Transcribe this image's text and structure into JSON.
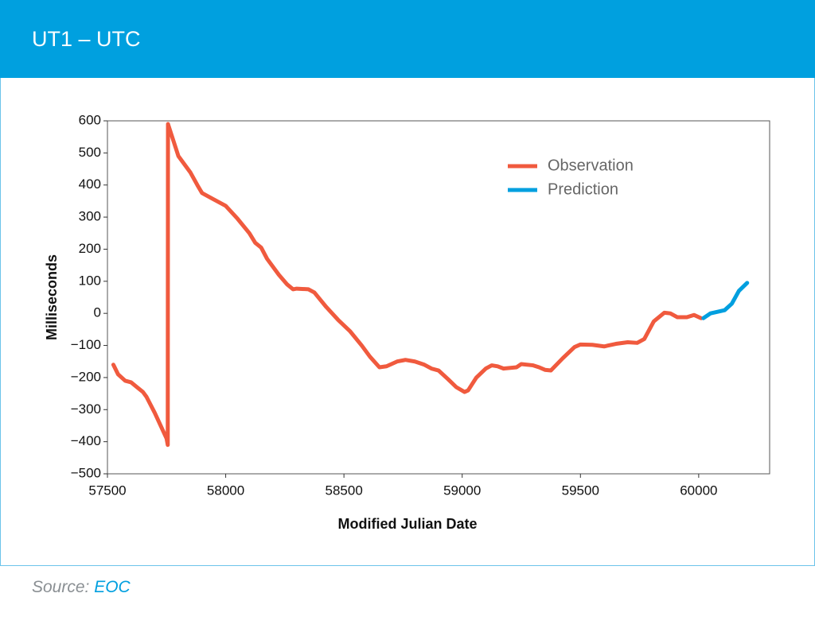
{
  "header": {
    "title": "UT1 – UTC"
  },
  "chart_data": {
    "type": "line",
    "xlabel": "Modified Julian Date",
    "ylabel": "Milliseconds",
    "xlim": [
      57500,
      60300
    ],
    "ylim": [
      -500,
      600
    ],
    "xticks": [
      57500,
      58000,
      58500,
      59000,
      59500,
      60000
    ],
    "yticks": [
      {
        "value": -500,
        "label": "−500"
      },
      {
        "value": -400,
        "label": "−400"
      },
      {
        "value": -300,
        "label": "−300"
      },
      {
        "value": -200,
        "label": "−200"
      },
      {
        "value": -100,
        "label": "−100"
      },
      0,
      100,
      200,
      300,
      400,
      500,
      600
    ],
    "legend": "upper right",
    "series": [
      {
        "name": "Observation",
        "color": "#f05a3e",
        "x": [
          57525,
          57545,
          57575,
          57600,
          57625,
          57650,
          57665,
          57700,
          57750,
          57755,
          57756,
          57800,
          57850,
          57880,
          57900,
          57950,
          58000,
          58050,
          58100,
          58125,
          58150,
          58175,
          58225,
          58260,
          58285,
          58300,
          58350,
          58375,
          58425,
          58475,
          58525,
          58575,
          58610,
          58650,
          58680,
          58725,
          58760,
          58800,
          58840,
          58870,
          58900,
          58940,
          58975,
          59010,
          59025,
          59060,
          59100,
          59125,
          59150,
          59175,
          59230,
          59250,
          59300,
          59325,
          59350,
          59375,
          59425,
          59475,
          59500,
          59550,
          59600,
          59650,
          59700,
          59740,
          59770,
          59810,
          59835,
          59855,
          59880,
          59910,
          59950,
          59980,
          60010
        ],
        "values": [
          -160,
          -190,
          -210,
          -215,
          -230,
          -245,
          -260,
          -310,
          -390,
          -410,
          590,
          490,
          440,
          400,
          375,
          355,
          335,
          295,
          250,
          220,
          205,
          170,
          120,
          90,
          75,
          77,
          75,
          65,
          20,
          -20,
          -55,
          -100,
          -135,
          -168,
          -165,
          -150,
          -145,
          -150,
          -160,
          -172,
          -178,
          -205,
          -230,
          -245,
          -240,
          -200,
          -172,
          -162,
          -165,
          -172,
          -168,
          -158,
          -162,
          -168,
          -176,
          -178,
          -140,
          -105,
          -97,
          -98,
          -103,
          -95,
          -90,
          -92,
          -80,
          -25,
          -10,
          2,
          0,
          -12,
          -12,
          -5,
          -15
        ]
      },
      {
        "name": "Prediction",
        "color": "#009fdf",
        "x": [
          60020,
          60050,
          60080,
          60110,
          60140,
          60170,
          60205
        ],
        "values": [
          -15,
          0,
          5,
          10,
          30,
          70,
          95
        ]
      }
    ]
  },
  "source": {
    "prefix": "Source:",
    "name": "EOC"
  }
}
